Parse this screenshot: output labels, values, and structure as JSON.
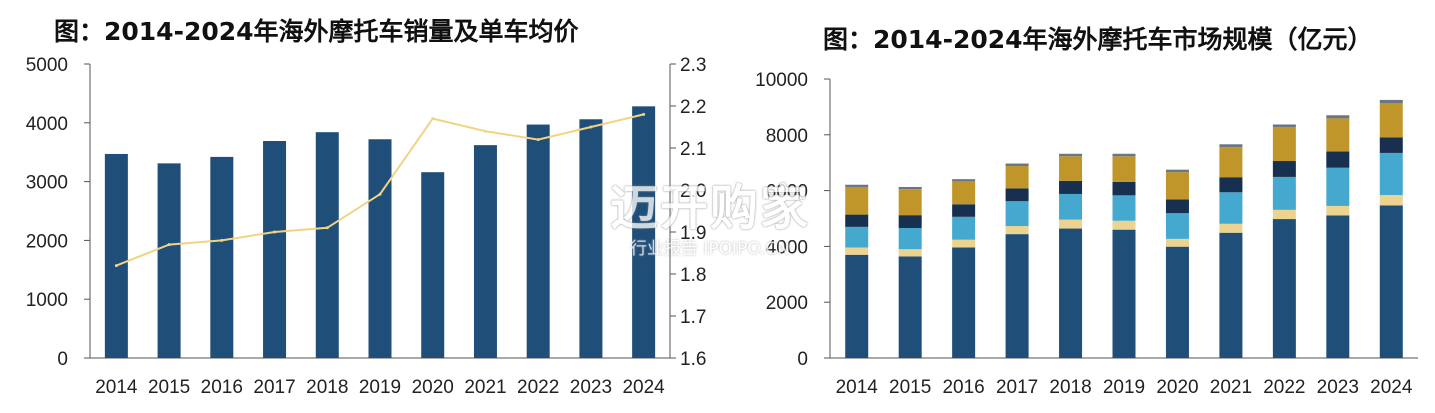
{
  "titles": {
    "left": "图：2014-2024年海外摩托车销量及单车均价",
    "right": "图：2014-2024年海外摩托车市场规模（亿元）"
  },
  "watermark": {
    "main": "迈开购家",
    "sub": "行业报告 IPOIPO.CN"
  },
  "colors": {
    "bar_blue": "#1f4e79",
    "line_gold": "#f2d384",
    "stack": [
      "#1f4e79",
      "#ecd38f",
      "#45a9cf",
      "#17304f",
      "#c0962a",
      "#6a7680"
    ]
  },
  "chart_data": [
    {
      "type": "bar",
      "categories": [
        "2014",
        "2015",
        "2016",
        "2017",
        "2018",
        "2019",
        "2020",
        "2021",
        "2022",
        "2023",
        "2024"
      ],
      "series": [
        {
          "values": [
            3470,
            3310,
            3420,
            3690,
            3840,
            3720,
            3160,
            3620,
            3970,
            4060,
            4280
          ]
        },
        {
          "type": "line",
          "axis": "right",
          "values": [
            1.82,
            1.87,
            1.88,
            1.9,
            1.91,
            1.99,
            2.17,
            2.14,
            2.12,
            2.15,
            2.18
          ]
        }
      ],
      "ylim": [
        0,
        5000
      ],
      "yticks": [
        0,
        1000,
        2000,
        3000,
        4000,
        5000
      ],
      "ylim_right": [
        1.6,
        2.3
      ],
      "yticks_right": [
        "1.6",
        "1.7",
        "1.8",
        "1.9",
        "2.0",
        "2.1",
        "2.2",
        "2.3"
      ]
    },
    {
      "type": "bar",
      "stacked": true,
      "categories": [
        "2014",
        "2015",
        "2016",
        "2017",
        "2018",
        "2019",
        "2020",
        "2021",
        "2022",
        "2023",
        "2024"
      ],
      "series": [
        {
          "values": [
            3700,
            3640,
            3960,
            4440,
            4640,
            4600,
            3990,
            4490,
            4980,
            5110,
            5470
          ]
        },
        {
          "values": [
            260,
            260,
            280,
            290,
            320,
            320,
            280,
            320,
            330,
            340,
            370
          ]
        },
        {
          "values": [
            740,
            760,
            820,
            890,
            920,
            910,
            920,
            1130,
            1180,
            1370,
            1510
          ]
        },
        {
          "values": [
            440,
            460,
            450,
            460,
            470,
            480,
            490,
            540,
            570,
            580,
            560
          ]
        },
        {
          "values": [
            990,
            930,
            820,
            800,
            880,
            920,
            980,
            1080,
            1210,
            1190,
            1230
          ]
        },
        {
          "values": [
            80,
            80,
            80,
            90,
            90,
            90,
            90,
            100,
            100,
            110,
            110
          ]
        }
      ],
      "ylim": [
        0,
        10000
      ],
      "yticks": [
        0,
        2000,
        4000,
        6000,
        8000,
        10000
      ]
    }
  ]
}
